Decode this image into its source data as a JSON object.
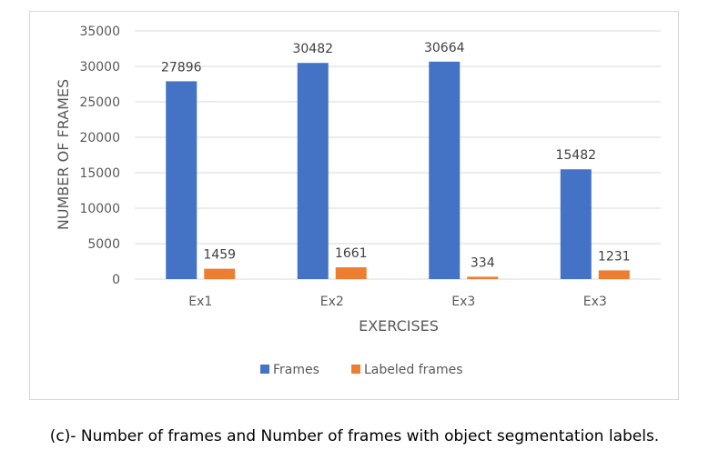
{
  "chart_data": {
    "type": "bar",
    "categories": [
      "Ex1",
      "Ex2",
      "Ex3",
      "Ex3"
    ],
    "series": [
      {
        "name": "Frames",
        "values": [
          27896,
          30482,
          30664,
          15482
        ],
        "color": "#4472c4"
      },
      {
        "name": "Labeled frames",
        "values": [
          1459,
          1661,
          334,
          1231
        ],
        "color": "#ed7d31"
      }
    ],
    "title": "",
    "xlabel": "EXERCISES",
    "ylabel": "NUMBER OF FRAMES",
    "ylim": [
      0,
      35000
    ],
    "yticks": [
      "0",
      "5000",
      "10000",
      "15000",
      "20000",
      "25000",
      "30000",
      "35000"
    ],
    "grid": true,
    "legend": "bottom"
  },
  "caption": "(c)- Number of frames and Number of frames with object segmentation labels."
}
